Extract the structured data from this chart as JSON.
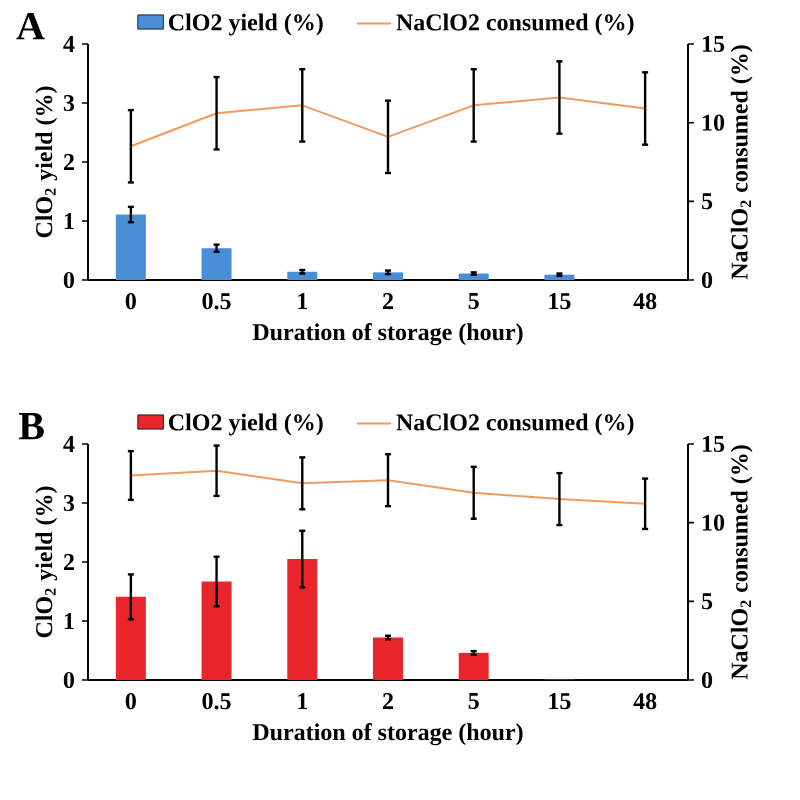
{
  "chart_data": [
    {
      "type": "bar",
      "categories": [
        "0",
        "0.5",
        "1",
        "2",
        "5",
        "15",
        "48"
      ],
      "series": [
        {
          "name": "ClO2 yield (%)",
          "color": "#4a8fd6",
          "values": [
            1.11,
            0.54,
            0.14,
            0.13,
            0.11,
            0.09,
            null
          ],
          "errors": [
            0.13,
            0.06,
            0.03,
            0.03,
            0.02,
            0.02,
            null
          ]
        },
        {
          "name": "NaClO2 consumed (%)",
          "type": "line",
          "axis": "y2",
          "color": "#ed9b5e",
          "values": [
            8.5,
            10.6,
            11.1,
            9.1,
            11.1,
            11.6,
            10.9
          ],
          "errors": [
            2.3,
            2.3,
            2.3,
            2.3,
            2.3,
            2.3,
            2.3
          ]
        }
      ],
      "ylim": [
        0,
        4
      ],
      "yticks": [
        0,
        1,
        2,
        3,
        4
      ],
      "y2lim": [
        0,
        15
      ],
      "y2ticks": [
        0,
        5,
        10,
        15
      ],
      "xlabel": "Duration of storage (hour)",
      "ylabel": "ClO$_{2}$ yield (%)",
      "y2label": "NaClO$_{2}$ consumed (%)",
      "legend": "top",
      "annotations": [
        "A"
      ]
    },
    {
      "type": "bar",
      "categories": [
        "0",
        "0.5",
        "1",
        "2",
        "5",
        "15",
        "48"
      ],
      "series": [
        {
          "name": "ClO2 yield (%)",
          "color": "#e8252a",
          "values": [
            1.41,
            1.67,
            2.05,
            0.72,
            0.46,
            0.01,
            null
          ],
          "errors": [
            0.38,
            0.42,
            0.48,
            0.03,
            0.03,
            null,
            null
          ]
        },
        {
          "name": "NaClO2 consumed (%)",
          "type": "line",
          "axis": "y2",
          "color": "#ed9b5e",
          "values": [
            13.0,
            13.3,
            12.5,
            12.7,
            11.9,
            11.5,
            11.2
          ],
          "errors": [
            1.55,
            1.6,
            1.65,
            1.65,
            1.65,
            1.65,
            1.6
          ]
        }
      ],
      "ylim": [
        0,
        4
      ],
      "yticks": [
        0,
        1,
        2,
        3,
        4
      ],
      "y2lim": [
        0,
        15
      ],
      "y2ticks": [
        0,
        5,
        10,
        15
      ],
      "xlabel": "Duration of storage (hour)",
      "ylabel": "ClO$_{2}$ yield (%)",
      "y2label": "NaClO$_{2}$ consumed (%)",
      "legend": "top",
      "annotations": [
        "B"
      ]
    }
  ]
}
